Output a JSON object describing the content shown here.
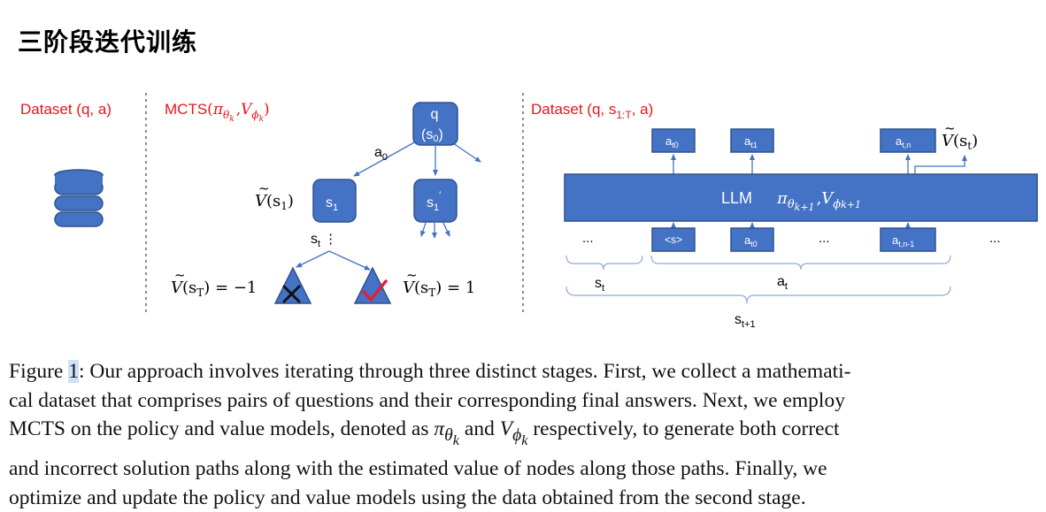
{
  "title": "三阶段迭代训练",
  "panel1": {
    "label": "Dataset (q, a)",
    "icon": "database-icon"
  },
  "panel2": {
    "label": "MCTS",
    "label_args": [
      "π",
      "θ",
      "k",
      ",",
      "V",
      "ϕ",
      "k"
    ],
    "root": {
      "line1": "q",
      "line2": "(s",
      "sub": "0",
      "close": ")"
    },
    "edge_label": {
      "base": "a",
      "sub": "0"
    },
    "node_s1": {
      "base": "s",
      "sub": "1"
    },
    "node_s1p": {
      "base": "s",
      "sub": "1",
      "prime": "′"
    },
    "value_s1": {
      "v": "V",
      "tilde": "~",
      "arg": "(s",
      "sub": "1",
      "close": ")"
    },
    "st_label": {
      "base": "s",
      "sub": "t",
      "dots": "⋮"
    },
    "leaf_left": {
      "v": "V",
      "tilde": "~",
      "arg": "(s",
      "sub": "T",
      "rest": ") = −1"
    },
    "leaf_right": {
      "v": "V",
      "tilde": "~",
      "arg": "(s",
      "sub": "T",
      "rest": ") = 1"
    }
  },
  "panel3": {
    "label": {
      "pre": "Dataset (q, s",
      "sub": "1:T",
      "post": ", a)"
    },
    "top_tokens": [
      {
        "base": "a",
        "sub": "t0"
      },
      {
        "base": "a",
        "sub": "t1"
      },
      {
        "base": "a",
        "sub": "t,n"
      }
    ],
    "value_out": {
      "v": "V",
      "tilde": "~",
      "arg": "(s",
      "sub": "t",
      "close": ")"
    },
    "llm": {
      "name": "LLM",
      "pi": "π",
      "theta": "θ",
      "k1": "k+1",
      "comma": ",",
      "v": "V",
      "phi": "ϕ",
      "k1b": "k+1"
    },
    "bottom_tokens": [
      {
        "text": "<s>"
      },
      {
        "base": "a",
        "sub": "t0"
      },
      {
        "base": "a",
        "sub": "t,n-1"
      }
    ],
    "ellipsis": "...",
    "brace_st": {
      "base": "s",
      "sub": "t"
    },
    "brace_at": {
      "base": "a",
      "sub": "t"
    },
    "brace_st1": {
      "base": "s",
      "sub": "t+1"
    }
  },
  "caption": {
    "fig_word": "Figure ",
    "fig_num": "1",
    "lines": [
      ": Our approach involves iterating through three distinct stages. First, we collect a mathemati-",
      "cal dataset that comprises pairs of questions and their corresponding final answers. Next, we employ",
      "respectively, to generate both correct",
      "and incorrect solution paths along with the estimated value of nodes along those paths. Finally, we",
      "optimize and update the policy and value models using the data obtained from the second stage."
    ],
    "line3_pre": "MCTS on the policy and value models, denoted as ",
    "line3_mid": " and ",
    "pi": "π",
    "theta": "θ",
    "k": "k",
    "v": "V",
    "phi": "ϕ"
  },
  "colors": {
    "red": "#e8141c",
    "blue": "#4472c4",
    "dark_blue": "#2f528f",
    "check": "#e0203a"
  }
}
